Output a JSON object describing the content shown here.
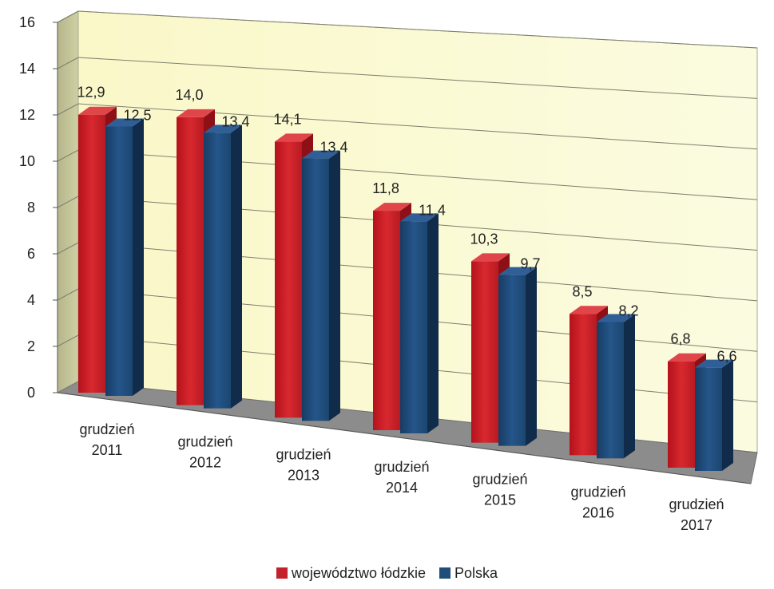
{
  "chart_data": {
    "type": "bar",
    "categories": [
      [
        "grudzień",
        "2011"
      ],
      [
        "grudzień",
        "2012"
      ],
      [
        "grudzień",
        "2013"
      ],
      [
        "grudzień",
        "2014"
      ],
      [
        "grudzień",
        "2015"
      ],
      [
        "grudzień",
        "2016"
      ],
      [
        "grudzień",
        "2017"
      ]
    ],
    "series": [
      {
        "name": "województwo łódzkie",
        "values": [
          12.9,
          14.0,
          14.1,
          11.8,
          10.3,
          8.5,
          6.8
        ],
        "labels": [
          "12,9",
          "14,0",
          "14,1",
          "11,8",
          "10,3",
          "8,5",
          "6,8"
        ],
        "color": "#c3222a"
      },
      {
        "name": "Polska",
        "values": [
          12.5,
          13.4,
          13.4,
          11.4,
          9.7,
          8.2,
          6.6
        ],
        "labels": [
          "12,5",
          "13,4",
          "13,4",
          "11,4",
          "9,7",
          "8,2",
          "6,6"
        ],
        "color": "#1f4e79"
      }
    ],
    "y_ticks": [
      "0",
      "2",
      "4",
      "6",
      "8",
      "10",
      "12",
      "14",
      "16"
    ],
    "ylim": [
      0,
      16
    ],
    "grid": true,
    "legend_position": "bottom",
    "style": "3d-perspective",
    "title": "",
    "xlabel": "",
    "ylabel": ""
  }
}
